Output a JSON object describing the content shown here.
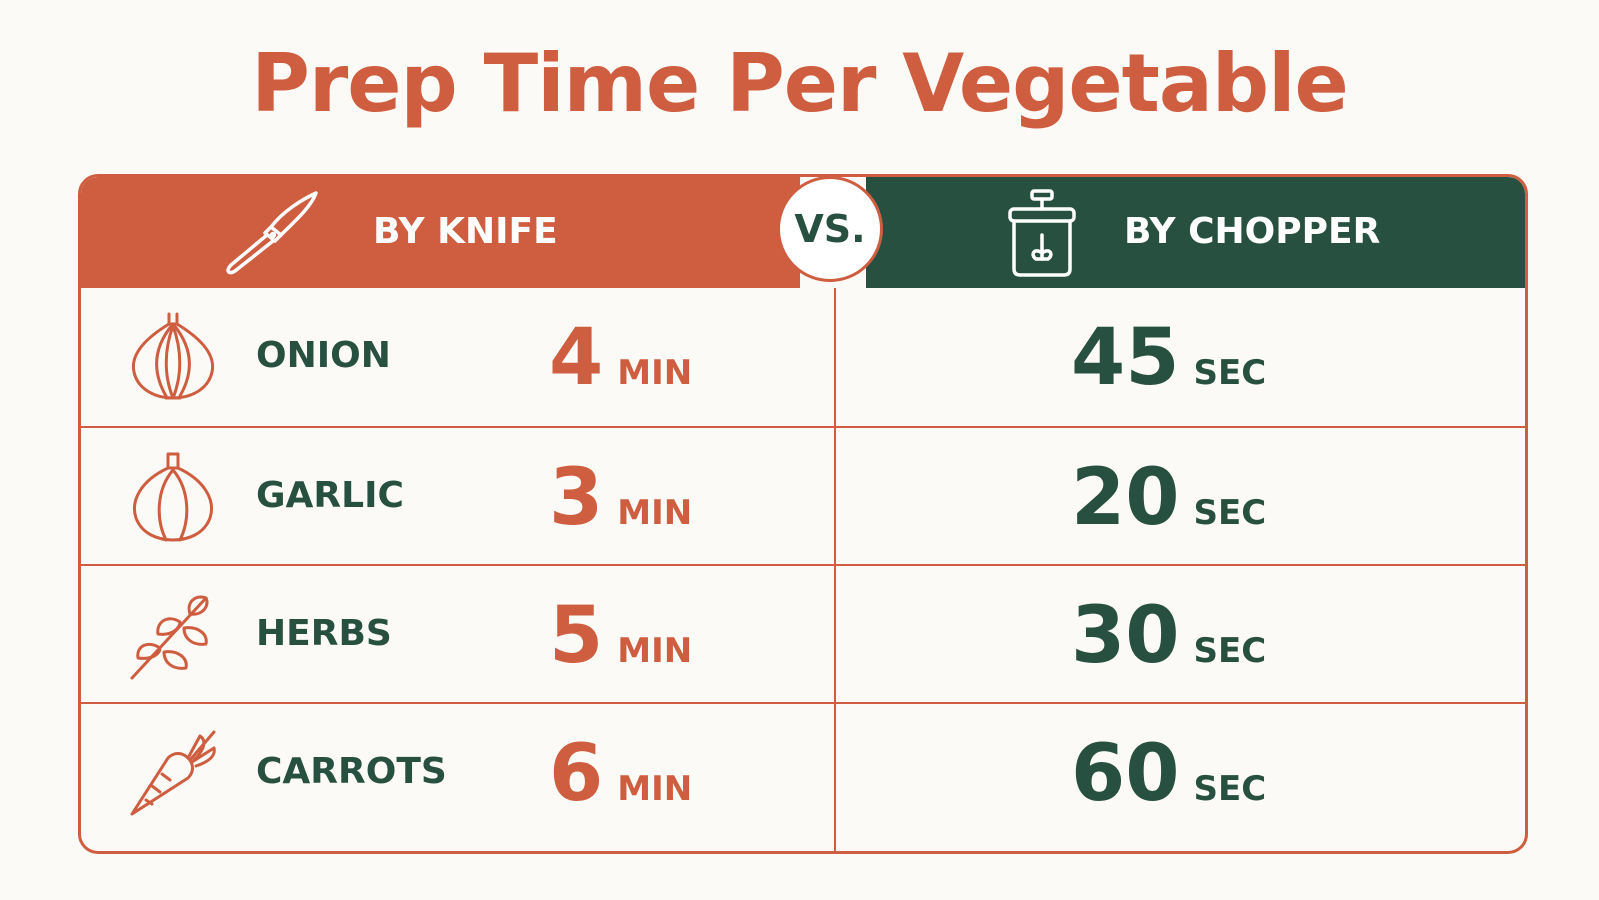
{
  "chart_data": {
    "type": "table",
    "title": "Prep Time Per Vegetable",
    "columns": [
      {
        "label": "BY KNIFE",
        "icon": "knife-icon",
        "unit": "MIN",
        "color": "#cf5d3f"
      },
      {
        "label": "BY CHOPPER",
        "icon": "chopper-icon",
        "unit": "SEC",
        "color": "#285040"
      }
    ],
    "vs_label": "VS.",
    "rows": [
      {
        "vegetable": "ONION",
        "icon": "onion-icon",
        "knife": "4",
        "knife_unit": "MIN",
        "chopper": "45",
        "chopper_unit": "SEC"
      },
      {
        "vegetable": "GARLIC",
        "icon": "garlic-icon",
        "knife": "3",
        "knife_unit": "MIN",
        "chopper": "20",
        "chopper_unit": "SEC"
      },
      {
        "vegetable": "HERBS",
        "icon": "herbs-icon",
        "knife": "5",
        "knife_unit": "MIN",
        "chopper": "30",
        "chopper_unit": "SEC"
      },
      {
        "vegetable": "CARROTS",
        "icon": "carrot-icon",
        "knife": "6",
        "knife_unit": "MIN",
        "chopper": "60",
        "chopper_unit": "SEC"
      }
    ]
  },
  "colors": {
    "accent": "#cf5d3f",
    "dark_green": "#285040",
    "background": "#fcfaf7"
  }
}
